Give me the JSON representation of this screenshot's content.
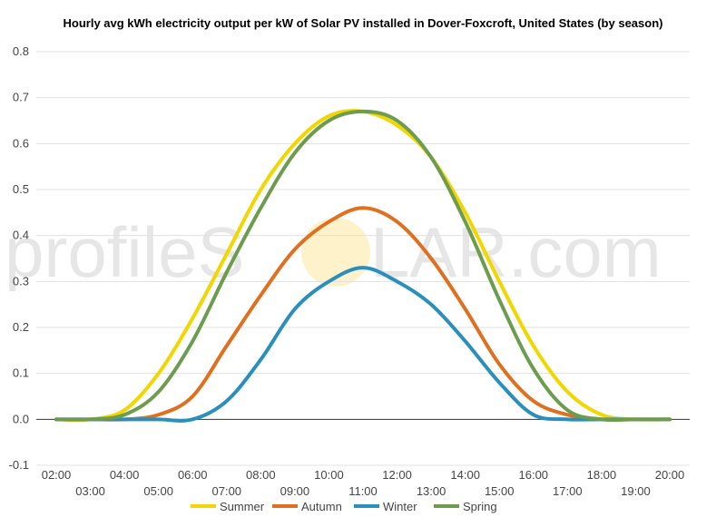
{
  "chart_data": {
    "type": "line",
    "title": "Hourly avg kWh electricity output per kW of Solar PV installed in Dover-Foxcroft, United States (by season)",
    "xlabel": "",
    "ylabel": "",
    "x": [
      "02:00",
      "03:00",
      "04:00",
      "05:00",
      "06:00",
      "07:00",
      "08:00",
      "09:00",
      "10:00",
      "11:00",
      "12:00",
      "13:00",
      "14:00",
      "15:00",
      "16:00",
      "17:00",
      "18:00",
      "19:00",
      "20:00"
    ],
    "ylim": [
      -0.1,
      0.8
    ],
    "yticks": [
      -0.1,
      0.0,
      0.1,
      0.2,
      0.3,
      0.4,
      0.5,
      0.6,
      0.7,
      0.8
    ],
    "grid": true,
    "legend_position": "bottom",
    "series": [
      {
        "name": "Summer",
        "color": "#f2d600",
        "values": [
          0.0,
          0.0,
          0.02,
          0.1,
          0.22,
          0.36,
          0.5,
          0.6,
          0.66,
          0.67,
          0.64,
          0.57,
          0.45,
          0.3,
          0.16,
          0.06,
          0.01,
          0.0,
          0.0
        ]
      },
      {
        "name": "Autumn",
        "color": "#e07020",
        "values": [
          0.0,
          0.0,
          0.0,
          0.01,
          0.05,
          0.16,
          0.27,
          0.37,
          0.43,
          0.46,
          0.43,
          0.35,
          0.24,
          0.12,
          0.04,
          0.01,
          0.0,
          0.0,
          0.0
        ]
      },
      {
        "name": "Winter",
        "color": "#2a8fbd",
        "values": [
          0.0,
          0.0,
          0.0,
          0.0,
          0.0,
          0.04,
          0.13,
          0.24,
          0.3,
          0.33,
          0.3,
          0.25,
          0.17,
          0.08,
          0.01,
          0.0,
          0.0,
          0.0,
          0.0
        ]
      },
      {
        "name": "Spring",
        "color": "#6d9c4f",
        "values": [
          0.0,
          0.0,
          0.01,
          0.06,
          0.17,
          0.32,
          0.46,
          0.58,
          0.65,
          0.67,
          0.65,
          0.57,
          0.43,
          0.26,
          0.11,
          0.02,
          0.0,
          0.0,
          0.0
        ]
      }
    ]
  },
  "watermark": {
    "text_left": "profileS",
    "text_right": "LAR.com"
  }
}
